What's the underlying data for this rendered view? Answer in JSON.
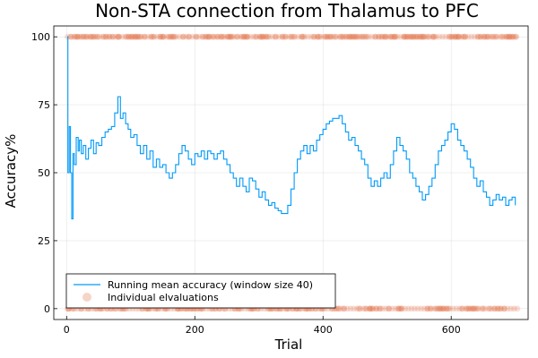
{
  "chart_data": {
    "type": "line",
    "title": "Non-STA connection from Thalamus to PFC",
    "xlabel": "Trial",
    "ylabel": "Accuracy%",
    "xlim": [
      -20,
      720
    ],
    "ylim": [
      -4,
      104
    ],
    "xticks": [
      0,
      200,
      400,
      600
    ],
    "yticks": [
      0,
      25,
      50,
      75,
      100
    ],
    "grid": true,
    "legend_position": "bottom-left",
    "colors": {
      "line": "#009af9",
      "scatter": "#e26f46"
    },
    "series": [
      {
        "name": "Running mean accuracy (window size 40)",
        "type": "line",
        "points": [
          [
            1,
            100
          ],
          [
            2,
            50
          ],
          [
            4,
            67
          ],
          [
            6,
            50
          ],
          [
            8,
            33
          ],
          [
            10,
            57
          ],
          [
            12,
            53
          ],
          [
            15,
            63
          ],
          [
            18,
            58
          ],
          [
            20,
            62
          ],
          [
            23,
            57
          ],
          [
            26,
            60
          ],
          [
            30,
            55
          ],
          [
            34,
            59
          ],
          [
            38,
            62
          ],
          [
            42,
            57
          ],
          [
            46,
            61
          ],
          [
            50,
            60
          ],
          [
            55,
            63
          ],
          [
            60,
            65
          ],
          [
            65,
            66
          ],
          [
            70,
            67
          ],
          [
            75,
            72
          ],
          [
            80,
            78
          ],
          [
            84,
            70
          ],
          [
            88,
            72
          ],
          [
            92,
            68
          ],
          [
            96,
            66
          ],
          [
            100,
            63
          ],
          [
            105,
            64
          ],
          [
            110,
            60
          ],
          [
            115,
            57
          ],
          [
            120,
            60
          ],
          [
            125,
            55
          ],
          [
            130,
            58
          ],
          [
            135,
            52
          ],
          [
            140,
            55
          ],
          [
            145,
            52
          ],
          [
            150,
            53
          ],
          [
            155,
            50
          ],
          [
            160,
            48
          ],
          [
            165,
            50
          ],
          [
            170,
            53
          ],
          [
            175,
            57
          ],
          [
            180,
            60
          ],
          [
            185,
            58
          ],
          [
            190,
            55
          ],
          [
            195,
            53
          ],
          [
            200,
            57
          ],
          [
            205,
            56
          ],
          [
            210,
            58
          ],
          [
            215,
            55
          ],
          [
            220,
            58
          ],
          [
            225,
            57
          ],
          [
            230,
            55
          ],
          [
            235,
            57
          ],
          [
            240,
            58
          ],
          [
            245,
            55
          ],
          [
            250,
            53
          ],
          [
            255,
            50
          ],
          [
            260,
            48
          ],
          [
            265,
            45
          ],
          [
            270,
            48
          ],
          [
            275,
            45
          ],
          [
            280,
            43
          ],
          [
            285,
            48
          ],
          [
            290,
            47
          ],
          [
            295,
            44
          ],
          [
            300,
            41
          ],
          [
            305,
            43
          ],
          [
            310,
            40
          ],
          [
            315,
            38
          ],
          [
            320,
            39
          ],
          [
            325,
            37
          ],
          [
            330,
            36
          ],
          [
            335,
            35
          ],
          [
            340,
            35
          ],
          [
            345,
            38
          ],
          [
            350,
            44
          ],
          [
            355,
            50
          ],
          [
            360,
            55
          ],
          [
            365,
            58
          ],
          [
            370,
            60
          ],
          [
            375,
            57
          ],
          [
            380,
            60
          ],
          [
            385,
            58
          ],
          [
            390,
            62
          ],
          [
            395,
            64
          ],
          [
            400,
            66
          ],
          [
            405,
            68
          ],
          [
            410,
            69
          ],
          [
            415,
            70
          ],
          [
            420,
            70
          ],
          [
            425,
            71
          ],
          [
            430,
            68
          ],
          [
            435,
            65
          ],
          [
            440,
            62
          ],
          [
            445,
            63
          ],
          [
            450,
            60
          ],
          [
            455,
            58
          ],
          [
            460,
            55
          ],
          [
            465,
            53
          ],
          [
            470,
            48
          ],
          [
            475,
            45
          ],
          [
            480,
            47
          ],
          [
            485,
            45
          ],
          [
            490,
            48
          ],
          [
            495,
            50
          ],
          [
            500,
            48
          ],
          [
            505,
            53
          ],
          [
            510,
            58
          ],
          [
            515,
            63
          ],
          [
            520,
            60
          ],
          [
            525,
            58
          ],
          [
            530,
            55
          ],
          [
            535,
            50
          ],
          [
            540,
            48
          ],
          [
            545,
            45
          ],
          [
            550,
            43
          ],
          [
            555,
            40
          ],
          [
            560,
            42
          ],
          [
            565,
            45
          ],
          [
            570,
            48
          ],
          [
            575,
            53
          ],
          [
            580,
            58
          ],
          [
            585,
            60
          ],
          [
            590,
            62
          ],
          [
            595,
            65
          ],
          [
            600,
            68
          ],
          [
            605,
            66
          ],
          [
            610,
            62
          ],
          [
            615,
            60
          ],
          [
            620,
            58
          ],
          [
            625,
            55
          ],
          [
            630,
            52
          ],
          [
            635,
            48
          ],
          [
            640,
            45
          ],
          [
            645,
            47
          ],
          [
            650,
            43
          ],
          [
            655,
            41
          ],
          [
            660,
            38
          ],
          [
            665,
            40
          ],
          [
            670,
            42
          ],
          [
            675,
            40
          ],
          [
            680,
            41
          ],
          [
            685,
            38
          ],
          [
            690,
            40
          ],
          [
            695,
            41
          ],
          [
            700,
            38
          ]
        ]
      },
      {
        "name": "Individual elvaluations",
        "type": "scatter",
        "values_description": "Each trial scored as 0 or 100",
        "y_levels": [
          0,
          100
        ],
        "x_range": [
          0,
          700
        ]
      }
    ]
  }
}
